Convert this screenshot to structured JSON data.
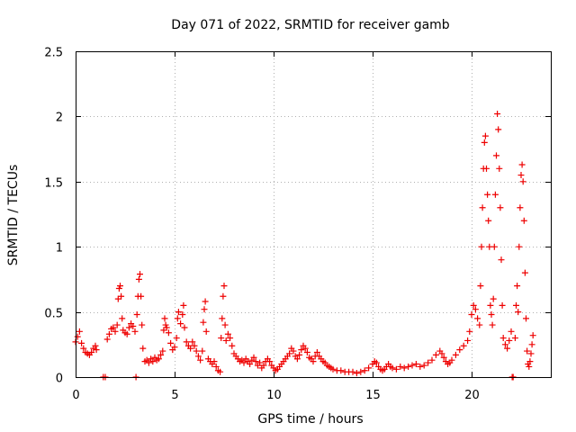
{
  "chart_data": {
    "type": "scatter",
    "title": "Day 071 of 2022, SRMTID for receiver gamb",
    "xlabel": "GPS time / hours",
    "ylabel": "SRMTID / TECUs",
    "xlim": [
      0,
      24
    ],
    "ylim": [
      0,
      2.5
    ],
    "x_ticks": [
      0,
      5,
      10,
      15,
      20
    ],
    "x_tick_labels": [
      "0",
      "5",
      "10",
      "15",
      "20"
    ],
    "y_ticks": [
      0,
      0.5,
      1,
      1.5,
      2,
      2.5
    ],
    "y_tick_labels": [
      "0",
      "0.5",
      "1",
      "1.5",
      "2",
      "2.5"
    ],
    "grid": true,
    "marker": "plus",
    "color": "#ee0000",
    "series": [
      {
        "name": "SRMTID",
        "points": [
          [
            0.0,
            0.27
          ],
          [
            0.1,
            0.31
          ],
          [
            0.2,
            0.35
          ],
          [
            0.3,
            0.26
          ],
          [
            0.4,
            0.22
          ],
          [
            0.5,
            0.19
          ],
          [
            0.6,
            0.18
          ],
          [
            0.7,
            0.17
          ],
          [
            0.8,
            0.19
          ],
          [
            0.9,
            0.22
          ],
          [
            1.0,
            0.24
          ],
          [
            1.05,
            0.21
          ],
          [
            1.4,
            0.0
          ],
          [
            1.5,
            0.0
          ],
          [
            1.6,
            0.29
          ],
          [
            1.7,
            0.33
          ],
          [
            1.8,
            0.37
          ],
          [
            1.9,
            0.38
          ],
          [
            2.0,
            0.35
          ],
          [
            2.1,
            0.4
          ],
          [
            2.15,
            0.6
          ],
          [
            2.2,
            0.68
          ],
          [
            2.25,
            0.7
          ],
          [
            2.3,
            0.62
          ],
          [
            2.35,
            0.45
          ],
          [
            2.4,
            0.36
          ],
          [
            2.5,
            0.34
          ],
          [
            2.6,
            0.33
          ],
          [
            2.7,
            0.38
          ],
          [
            2.8,
            0.41
          ],
          [
            2.9,
            0.39
          ],
          [
            3.0,
            0.35
          ],
          [
            3.05,
            0.0
          ],
          [
            3.1,
            0.48
          ],
          [
            3.15,
            0.62
          ],
          [
            3.2,
            0.75
          ],
          [
            3.25,
            0.79
          ],
          [
            3.3,
            0.62
          ],
          [
            3.35,
            0.4
          ],
          [
            3.4,
            0.22
          ],
          [
            3.5,
            0.12
          ],
          [
            3.6,
            0.13
          ],
          [
            3.7,
            0.11
          ],
          [
            3.8,
            0.14
          ],
          [
            3.9,
            0.12
          ],
          [
            4.0,
            0.15
          ],
          [
            4.1,
            0.13
          ],
          [
            4.2,
            0.14
          ],
          [
            4.3,
            0.17
          ],
          [
            4.4,
            0.2
          ],
          [
            4.45,
            0.36
          ],
          [
            4.5,
            0.45
          ],
          [
            4.55,
            0.4
          ],
          [
            4.6,
            0.38
          ],
          [
            4.7,
            0.34
          ],
          [
            4.8,
            0.26
          ],
          [
            4.9,
            0.21
          ],
          [
            5.0,
            0.23
          ],
          [
            5.1,
            0.3
          ],
          [
            5.15,
            0.45
          ],
          [
            5.2,
            0.5
          ],
          [
            5.3,
            0.41
          ],
          [
            5.4,
            0.48
          ],
          [
            5.45,
            0.55
          ],
          [
            5.5,
            0.38
          ],
          [
            5.6,
            0.27
          ],
          [
            5.7,
            0.24
          ],
          [
            5.8,
            0.22
          ],
          [
            5.9,
            0.27
          ],
          [
            6.0,
            0.24
          ],
          [
            6.1,
            0.2
          ],
          [
            6.2,
            0.16
          ],
          [
            6.3,
            0.13
          ],
          [
            6.4,
            0.2
          ],
          [
            6.45,
            0.42
          ],
          [
            6.5,
            0.52
          ],
          [
            6.55,
            0.58
          ],
          [
            6.6,
            0.35
          ],
          [
            6.7,
            0.14
          ],
          [
            6.8,
            0.12
          ],
          [
            6.9,
            0.1
          ],
          [
            7.0,
            0.12
          ],
          [
            7.1,
            0.08
          ],
          [
            7.2,
            0.05
          ],
          [
            7.3,
            0.04
          ],
          [
            7.35,
            0.3
          ],
          [
            7.4,
            0.45
          ],
          [
            7.45,
            0.62
          ],
          [
            7.5,
            0.7
          ],
          [
            7.55,
            0.4
          ],
          [
            7.6,
            0.28
          ],
          [
            7.7,
            0.33
          ],
          [
            7.8,
            0.3
          ],
          [
            7.9,
            0.24
          ],
          [
            8.0,
            0.18
          ],
          [
            8.1,
            0.16
          ],
          [
            8.2,
            0.14
          ],
          [
            8.3,
            0.12
          ],
          [
            8.4,
            0.13
          ],
          [
            8.5,
            0.11
          ],
          [
            8.6,
            0.14
          ],
          [
            8.7,
            0.12
          ],
          [
            8.8,
            0.1
          ],
          [
            8.9,
            0.13
          ],
          [
            9.0,
            0.15
          ],
          [
            9.1,
            0.12
          ],
          [
            9.2,
            0.09
          ],
          [
            9.3,
            0.11
          ],
          [
            9.4,
            0.07
          ],
          [
            9.5,
            0.09
          ],
          [
            9.6,
            0.12
          ],
          [
            9.7,
            0.14
          ],
          [
            9.8,
            0.12
          ],
          [
            9.9,
            0.09
          ],
          [
            10.0,
            0.07
          ],
          [
            10.1,
            0.05
          ],
          [
            10.2,
            0.06
          ],
          [
            10.3,
            0.08
          ],
          [
            10.4,
            0.1
          ],
          [
            10.5,
            0.12
          ],
          [
            10.6,
            0.14
          ],
          [
            10.7,
            0.16
          ],
          [
            10.8,
            0.18
          ],
          [
            10.9,
            0.22
          ],
          [
            11.0,
            0.2
          ],
          [
            11.1,
            0.16
          ],
          [
            11.2,
            0.14
          ],
          [
            11.3,
            0.17
          ],
          [
            11.4,
            0.21
          ],
          [
            11.5,
            0.24
          ],
          [
            11.6,
            0.22
          ],
          [
            11.7,
            0.19
          ],
          [
            11.8,
            0.15
          ],
          [
            11.9,
            0.14
          ],
          [
            12.0,
            0.12
          ],
          [
            12.1,
            0.16
          ],
          [
            12.2,
            0.19
          ],
          [
            12.3,
            0.16
          ],
          [
            12.4,
            0.14
          ],
          [
            12.5,
            0.12
          ],
          [
            12.6,
            0.11
          ],
          [
            12.7,
            0.09
          ],
          [
            12.8,
            0.08
          ],
          [
            12.9,
            0.07
          ],
          [
            13.0,
            0.06
          ],
          [
            13.2,
            0.05
          ],
          [
            13.4,
            0.05
          ],
          [
            13.6,
            0.04
          ],
          [
            13.8,
            0.04
          ],
          [
            14.0,
            0.04
          ],
          [
            14.2,
            0.03
          ],
          [
            14.4,
            0.04
          ],
          [
            14.6,
            0.05
          ],
          [
            14.8,
            0.07
          ],
          [
            15.0,
            0.1
          ],
          [
            15.1,
            0.12
          ],
          [
            15.2,
            0.11
          ],
          [
            15.3,
            0.08
          ],
          [
            15.4,
            0.06
          ],
          [
            15.5,
            0.05
          ],
          [
            15.6,
            0.06
          ],
          [
            15.7,
            0.08
          ],
          [
            15.8,
            0.1
          ],
          [
            15.9,
            0.08
          ],
          [
            16.0,
            0.07
          ],
          [
            16.2,
            0.06
          ],
          [
            16.4,
            0.08
          ],
          [
            16.6,
            0.07
          ],
          [
            16.8,
            0.08
          ],
          [
            17.0,
            0.09
          ],
          [
            17.2,
            0.1
          ],
          [
            17.4,
            0.08
          ],
          [
            17.6,
            0.09
          ],
          [
            17.8,
            0.11
          ],
          [
            18.0,
            0.13
          ],
          [
            18.2,
            0.17
          ],
          [
            18.4,
            0.2
          ],
          [
            18.5,
            0.18
          ],
          [
            18.6,
            0.15
          ],
          [
            18.7,
            0.12
          ],
          [
            18.8,
            0.1
          ],
          [
            18.9,
            0.11
          ],
          [
            19.0,
            0.13
          ],
          [
            19.2,
            0.17
          ],
          [
            19.4,
            0.21
          ],
          [
            19.6,
            0.24
          ],
          [
            19.8,
            0.28
          ],
          [
            19.9,
            0.35
          ],
          [
            20.0,
            0.48
          ],
          [
            20.1,
            0.55
          ],
          [
            20.2,
            0.52
          ],
          [
            20.3,
            0.45
          ],
          [
            20.4,
            0.4
          ],
          [
            20.45,
            0.7
          ],
          [
            20.5,
            1.0
          ],
          [
            20.55,
            1.3
          ],
          [
            20.6,
            1.6
          ],
          [
            20.65,
            1.8
          ],
          [
            20.7,
            1.85
          ],
          [
            20.75,
            1.6
          ],
          [
            20.8,
            1.4
          ],
          [
            20.85,
            1.2
          ],
          [
            20.9,
            1.0
          ],
          [
            20.95,
            0.55
          ],
          [
            21.0,
            0.48
          ],
          [
            21.05,
            0.4
          ],
          [
            21.1,
            0.6
          ],
          [
            21.15,
            1.0
          ],
          [
            21.2,
            1.4
          ],
          [
            21.25,
            1.7
          ],
          [
            21.3,
            2.02
          ],
          [
            21.35,
            1.9
          ],
          [
            21.4,
            1.6
          ],
          [
            21.45,
            1.3
          ],
          [
            21.5,
            0.9
          ],
          [
            21.55,
            0.55
          ],
          [
            21.6,
            0.3
          ],
          [
            21.7,
            0.25
          ],
          [
            21.8,
            0.22
          ],
          [
            21.9,
            0.28
          ],
          [
            22.0,
            0.35
          ],
          [
            22.05,
            0.0
          ],
          [
            22.1,
            0.0
          ],
          [
            22.2,
            0.3
          ],
          [
            22.25,
            0.55
          ],
          [
            22.3,
            0.7
          ],
          [
            22.35,
            0.5
          ],
          [
            22.4,
            1.0
          ],
          [
            22.45,
            1.3
          ],
          [
            22.5,
            1.55
          ],
          [
            22.55,
            1.63
          ],
          [
            22.6,
            1.5
          ],
          [
            22.65,
            1.2
          ],
          [
            22.7,
            0.8
          ],
          [
            22.75,
            0.45
          ],
          [
            22.8,
            0.2
          ],
          [
            22.85,
            0.1
          ],
          [
            22.9,
            0.08
          ],
          [
            22.95,
            0.12
          ],
          [
            23.0,
            0.18
          ],
          [
            23.05,
            0.25
          ],
          [
            23.1,
            0.32
          ]
        ]
      }
    ]
  }
}
